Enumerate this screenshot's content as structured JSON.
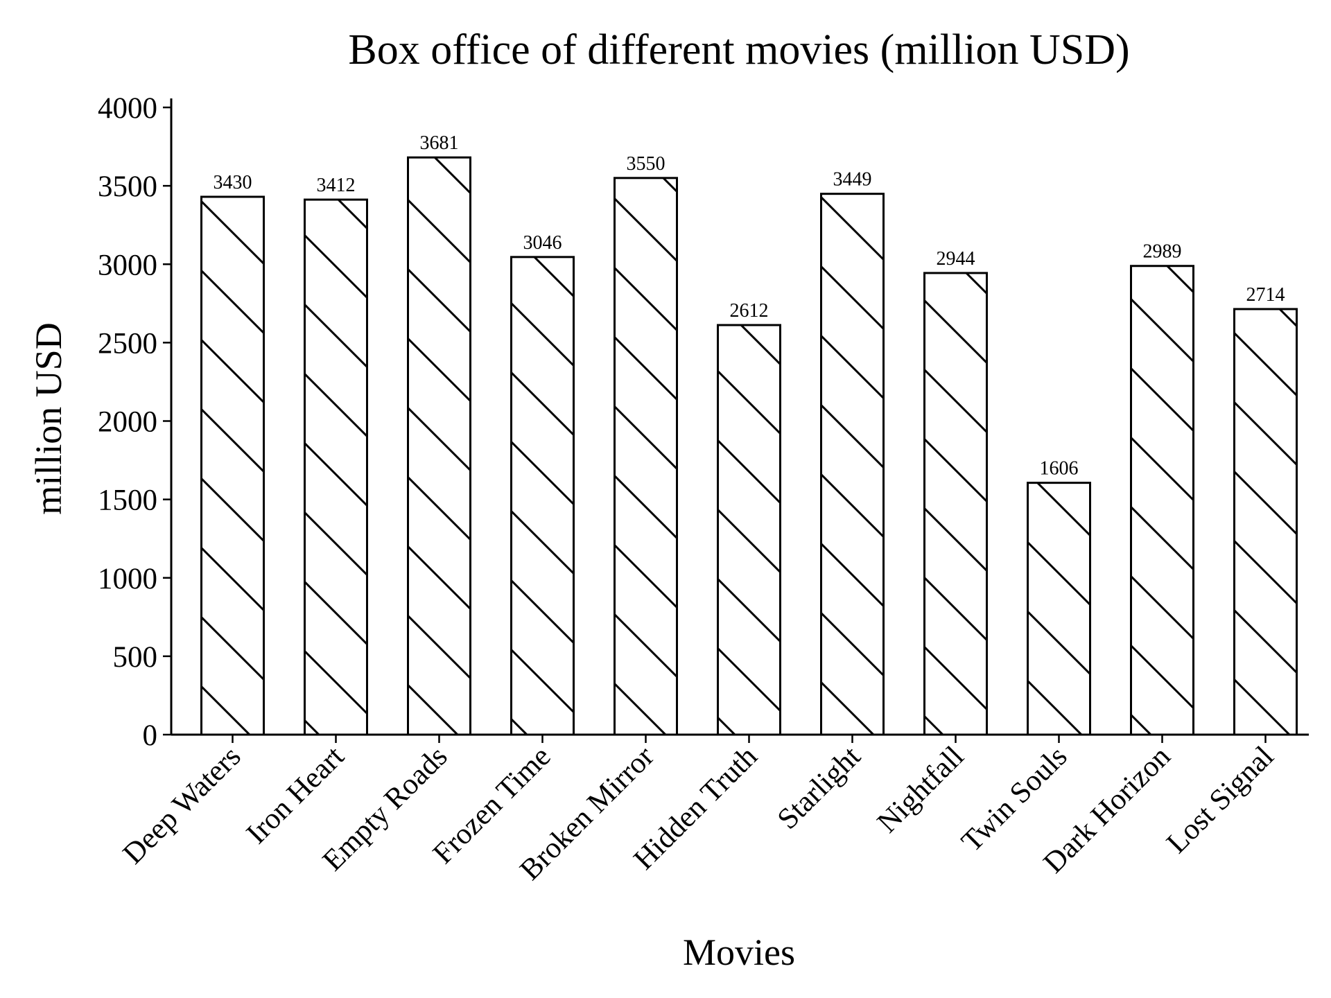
{
  "chart_data": {
    "type": "bar",
    "title": "Box office of different movies (million USD)",
    "xlabel": "Movies",
    "ylabel": "million USD",
    "categories": [
      "Deep Waters",
      "Iron Heart",
      "Empty Roads",
      "Frozen Time",
      "Broken Mirror",
      "Hidden Truth",
      "Starlight",
      "Nightfall",
      "Twin Souls",
      "Dark Horizon",
      "Lost Signal"
    ],
    "values": [
      3430,
      3412,
      3681,
      3046,
      3550,
      2612,
      3449,
      2944,
      1606,
      2989,
      2714
    ],
    "value_labels": [
      "3430",
      "3412",
      "3681",
      "3046",
      "3550",
      "2612",
      "3449",
      "2944",
      "1606",
      "2989",
      "2714"
    ],
    "ylim": [
      0,
      4050
    ],
    "yticks": [
      0,
      500,
      1000,
      1500,
      2000,
      2500,
      3000,
      3500,
      4000
    ],
    "ytick_labels": [
      "0",
      "500",
      "1000",
      "1500",
      "2000",
      "2500",
      "3000",
      "3500",
      "4000"
    ],
    "grid": false,
    "bar_fill": "#ffffff",
    "bar_edge_color": "#000000",
    "bar_hatch": "diagonal-backslash"
  }
}
